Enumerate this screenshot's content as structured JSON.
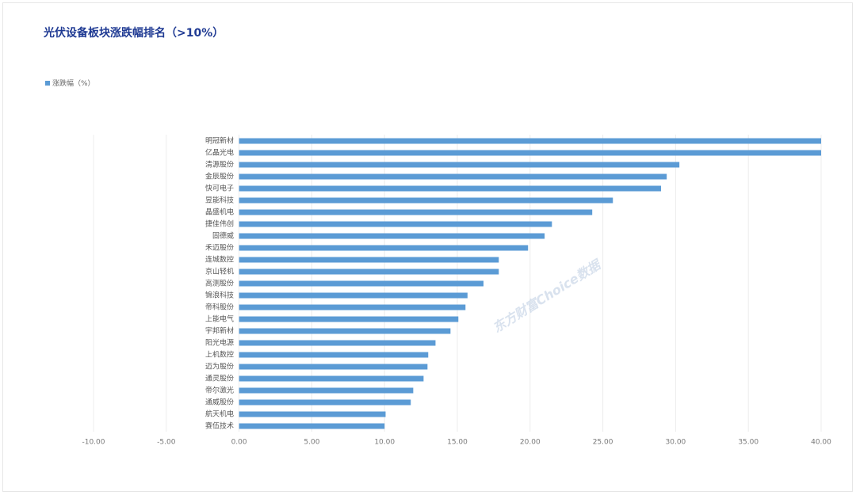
{
  "chart_data": {
    "type": "hbar",
    "title": "光伏设备板块涨跌幅排名（>10%）",
    "watermark": "东方财富Choice数据",
    "categories": [
      "明冠新材",
      "亿晶光电",
      "清源股份",
      "金辰股份",
      "快可电子",
      "昱能科技",
      "晶盛机电",
      "捷佳伟创",
      "固德威",
      "禾迈股份",
      "连城数控",
      "京山轻机",
      "高测股份",
      "锦浪科技",
      "帝科股份",
      "上能电气",
      "宇邦新材",
      "阳光电源",
      "上机数控",
      "迈为股份",
      "通灵股份",
      "帝尔激光",
      "通威股份",
      "航天机电",
      "赛伍技术"
    ],
    "series": [
      {
        "name": "涨跌幅（%）",
        "color": "#5b9bd5",
        "values": [
          40.0,
          40.0,
          30.26,
          29.39,
          29.0,
          25.69,
          24.27,
          21.5,
          21.0,
          19.86,
          17.85,
          17.85,
          16.8,
          15.7,
          15.56,
          15.07,
          14.53,
          13.5,
          13.0,
          12.95,
          12.68,
          11.97,
          11.8,
          10.07,
          10.0
        ]
      }
    ],
    "xlim": [
      -10,
      40
    ],
    "xticks": [
      {
        "value": -10,
        "label": "-10.00"
      },
      {
        "value": -5,
        "label": "-5.00"
      },
      {
        "value": 0,
        "label": "0.00"
      },
      {
        "value": 5,
        "label": "5.00"
      },
      {
        "value": 10,
        "label": "10.00"
      },
      {
        "value": 15,
        "label": "15.00"
      },
      {
        "value": 20,
        "label": "20.00"
      },
      {
        "value": 25,
        "label": "25.00"
      },
      {
        "value": 30,
        "label": "30.00"
      },
      {
        "value": 35,
        "label": "35.00"
      },
      {
        "value": 40,
        "label": "40.00"
      }
    ],
    "grid": true
  }
}
